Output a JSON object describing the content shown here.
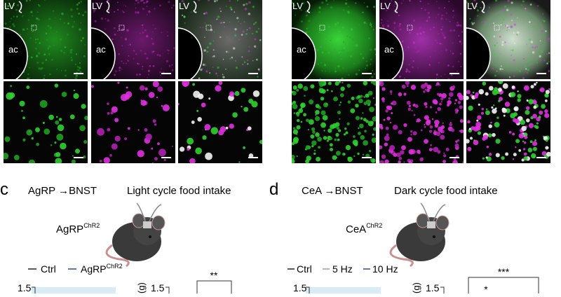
{
  "micrographs": {
    "left": [
      {
        "lv": "LV",
        "ac": "ac"
      },
      {
        "lv": "LV",
        "ac": "ac"
      },
      {
        "lv": "LV"
      }
    ],
    "right": [
      {
        "lv": "LV",
        "ac": "ac"
      },
      {
        "lv": "LV",
        "ac": "ac"
      },
      {
        "lv": "LV"
      }
    ]
  },
  "panel_c": {
    "letter": "c",
    "pathway": "AgRP →BNST",
    "title": "Light cycle food intake",
    "mouse_label": {
      "base": "AgRP",
      "sup": "ChR2"
    },
    "legend": [
      {
        "name": "Ctrl"
      },
      {
        "name": "AgRP",
        "sup": "ChR2"
      }
    ],
    "axis_1_top_tick": "1.5",
    "axis_2_label": "(g)",
    "axis_2_top_tick": "1.5",
    "significance": "**"
  },
  "panel_d": {
    "letter": "d",
    "pathway": "CeA →BNST",
    "title": "Dark cycle food intake",
    "mouse_label": {
      "base": "CeA",
      "sup": "ChR2"
    },
    "legend": [
      {
        "name": "Ctrl"
      },
      {
        "name": "5 Hz"
      },
      {
        "name": "10 Hz"
      }
    ],
    "axis_1_top_tick": "1.5",
    "axis_2_label": "(g)",
    "axis_2_top_tick": "1.5",
    "significance_1": "***",
    "significance_2": "*"
  }
}
